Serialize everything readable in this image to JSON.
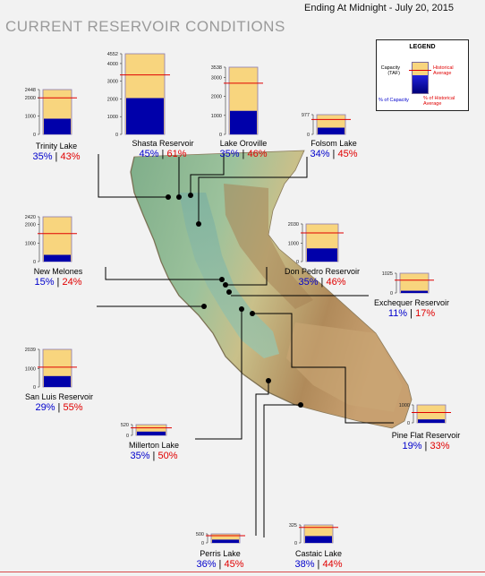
{
  "header": {
    "title": "CURRENT RESERVOIR CONDITIONS",
    "date_line": "Ending At Midnight - July 20, 2015"
  },
  "legend": {
    "title": "LEGEND",
    "capacity_label": "Capacity (TAF)",
    "historical_label": "Historical Average",
    "pct_capacity_label": "% of Capacity",
    "pct_historical_label": "% of Historical Average"
  },
  "colors": {
    "capacity_fill": "#f8d57e",
    "storage_fill": "#0000aa",
    "historical_line": "#e00000",
    "pct_capacity_text": "#0000cc",
    "pct_historical_text": "#e00000"
  },
  "chart_data": {
    "type": "bar",
    "units": "TAF",
    "reservoirs": [
      {
        "name": "Trinity Lake",
        "capacity": 2448,
        "ticks": [
          "2448",
          "2000",
          "1000",
          "0"
        ],
        "pct_capacity": "35%",
        "pct_historical": "43%"
      },
      {
        "name": "Shasta Reservoir",
        "capacity": 4552,
        "ticks": [
          "4552",
          "4000",
          "3000",
          "2000",
          "1000",
          "0"
        ],
        "pct_capacity": "45%",
        "pct_historical": "61%"
      },
      {
        "name": "Lake Oroville",
        "capacity": 3538,
        "ticks": [
          "3538",
          "3000",
          "2000",
          "1000",
          "0"
        ],
        "pct_capacity": "35%",
        "pct_historical": "46%"
      },
      {
        "name": "Folsom Lake",
        "capacity": 977,
        "ticks": [
          "977",
          "0"
        ],
        "pct_capacity": "34%",
        "pct_historical": "45%"
      },
      {
        "name": "New Melones",
        "capacity": 2420,
        "ticks": [
          "2420",
          "2000",
          "1000",
          "0"
        ],
        "pct_capacity": "15%",
        "pct_historical": "24%"
      },
      {
        "name": "Don Pedro Reservoir",
        "capacity": 2030,
        "ticks": [
          "2030",
          "1000",
          "0"
        ],
        "pct_capacity": "35%",
        "pct_historical": "46%"
      },
      {
        "name": "Exchequer Reservoir",
        "capacity": 1025,
        "ticks": [
          "1025",
          "0"
        ],
        "pct_capacity": "11%",
        "pct_historical": "17%"
      },
      {
        "name": "San Luis Reservoir",
        "capacity": 2039,
        "ticks": [
          "2039",
          "1000",
          "0"
        ],
        "pct_capacity": "29%",
        "pct_historical": "55%"
      },
      {
        "name": "Pine Flat Reservoir",
        "capacity": 1000,
        "ticks": [
          "1000",
          "0"
        ],
        "pct_capacity": "19%",
        "pct_historical": "33%"
      },
      {
        "name": "Millerton Lake",
        "capacity": 520,
        "ticks": [
          "520",
          "0"
        ],
        "pct_capacity": "35%",
        "pct_historical": "50%"
      },
      {
        "name": "Perris Lake",
        "capacity": 500,
        "ticks": [
          "500",
          "0"
        ],
        "pct_capacity": "36%",
        "pct_historical": "45%"
      },
      {
        "name": "Castaic Lake",
        "capacity": 325,
        "ticks": [
          "325",
          "0"
        ],
        "pct_capacity": "38%",
        "pct_historical": "44%"
      }
    ]
  }
}
